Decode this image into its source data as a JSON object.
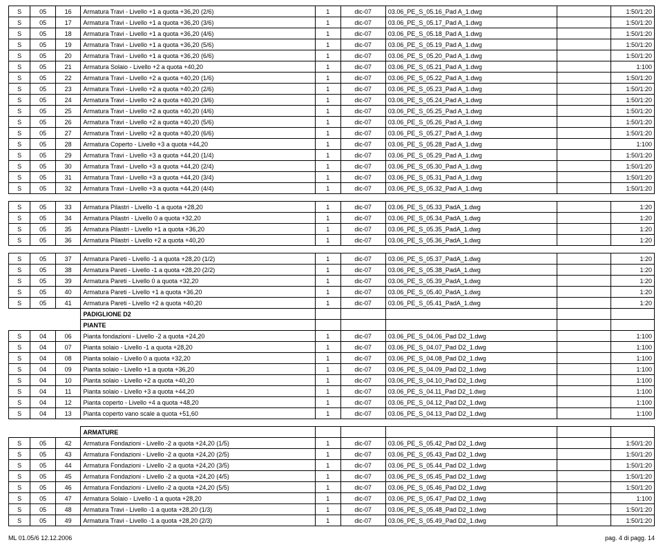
{
  "footer_left": "ML 01.05/6 12.12.2006",
  "footer_right": "pag. 4 di pagg. 14",
  "headers": {
    "pad_d2": "PADIGLIONE D2",
    "piante": "PIANTE",
    "armature": "ARMATURE"
  },
  "rows": [
    {
      "a": "S",
      "b": "05",
      "c": "16",
      "d": "Armatura Travi - Livello +1 a quota +36,20 (2/6)",
      "e": "1",
      "f": "dic-07",
      "g": "03.06_PE_S_05.16_Pad A_1.dwg",
      "i": "1:50/1:20"
    },
    {
      "a": "S",
      "b": "05",
      "c": "17",
      "d": "Armatura Travi - Livello +1 a quota +36,20 (3/6)",
      "e": "1",
      "f": "dic-07",
      "g": "03.06_PE_S_05.17_Pad A_1.dwg",
      "i": "1:50/1:20"
    },
    {
      "a": "S",
      "b": "05",
      "c": "18",
      "d": "Armatura Travi - Livello +1 a quota +36,20 (4/6)",
      "e": "1",
      "f": "dic-07",
      "g": "03.06_PE_S_05.18_Pad A_1.dwg",
      "i": "1:50/1:20"
    },
    {
      "a": "S",
      "b": "05",
      "c": "19",
      "d": "Armatura Travi - Livello +1 a quota +36,20 (5/6)",
      "e": "1",
      "f": "dic-07",
      "g": "03.06_PE_S_05.19_Pad A_1.dwg",
      "i": "1:50/1:20"
    },
    {
      "a": "S",
      "b": "05",
      "c": "20",
      "d": "Armatura Travi - Livello +1 a quota +36,20 (6/6)",
      "e": "1",
      "f": "dic-07",
      "g": "03.06_PE_S_05.20_Pad A_1.dwg",
      "i": "1:50/1:20"
    },
    {
      "a": "S",
      "b": "05",
      "c": "21",
      "d": "Armatura Solaio - Livello +2 a quota +40,20",
      "e": "1",
      "f": "dic-07",
      "g": "03.06_PE_S_05.21_Pad A_1.dwg",
      "i": "1:100"
    },
    {
      "a": "S",
      "b": "05",
      "c": "22",
      "d": "Armatura Travi - Livello +2 a quota +40,20 (1/6)",
      "e": "1",
      "f": "dic-07",
      "g": "03.06_PE_S_05.22_Pad A_1.dwg",
      "i": "1:50/1:20"
    },
    {
      "a": "S",
      "b": "05",
      "c": "23",
      "d": "Armatura Travi - Livello +2 a quota +40,20 (2/6)",
      "e": "1",
      "f": "dic-07",
      "g": "03.06_PE_S_05.23_Pad A_1.dwg",
      "i": "1:50/1:20"
    },
    {
      "a": "S",
      "b": "05",
      "c": "24",
      "d": "Armatura Travi - Livello +2 a quota +40,20 (3/6)",
      "e": "1",
      "f": "dic-07",
      "g": "03.06_PE_S_05.24_Pad A_1.dwg",
      "i": "1:50/1:20"
    },
    {
      "a": "S",
      "b": "05",
      "c": "25",
      "d": "Armatura Travi - Livello +2 a quota +40,20 (4/6)",
      "e": "1",
      "f": "dic-07",
      "g": "03.06_PE_S_05.25_Pad A_1.dwg",
      "i": "1:50/1:20"
    },
    {
      "a": "S",
      "b": "05",
      "c": "26",
      "d": "Armatura Travi - Livello +2 a quota +40,20 (5/6)",
      "e": "1",
      "f": "dic-07",
      "g": "03.06_PE_S_05.26_Pad A_1.dwg",
      "i": "1:50/1:20"
    },
    {
      "a": "S",
      "b": "05",
      "c": "27",
      "d": "Armatura Travi - Livello +2 a quota +40,20 (6/6)",
      "e": "1",
      "f": "dic-07",
      "g": "03.06_PE_S_05.27_Pad A_1.dwg",
      "i": "1:50/1:20"
    },
    {
      "a": "S",
      "b": "05",
      "c": "28",
      "d": "Armatura Coperto - Livello +3 a quota +44,20",
      "e": "1",
      "f": "dic-07",
      "g": "03.06_PE_S_05.28_Pad A_1.dwg",
      "i": "1:100"
    },
    {
      "a": "S",
      "b": "05",
      "c": "29",
      "d": "Armatura Travi - Livello +3 a quota +44,20 (1/4)",
      "e": "1",
      "f": "dic-07",
      "g": "03.06_PE_S_05.29_Pad A_1.dwg",
      "i": "1:50/1:20"
    },
    {
      "a": "S",
      "b": "05",
      "c": "30",
      "d": "Armatura Travi - Livello +3 a quota +44,20 (2/4)",
      "e": "1",
      "f": "dic-07",
      "g": "03.06_PE_S_05.30_Pad A_1.dwg",
      "i": "1:50/1:20"
    },
    {
      "a": "S",
      "b": "05",
      "c": "31",
      "d": "Armatura Travi - Livello +3 a quota +44,20 (3/4)",
      "e": "1",
      "f": "dic-07",
      "g": "03.06_PE_S_05.31_Pad A_1.dwg",
      "i": "1:50/1:20"
    },
    {
      "a": "S",
      "b": "05",
      "c": "32",
      "d": "Armatura Travi - Livello +3 a quota +44,20 (4/4)",
      "e": "1",
      "f": "dic-07",
      "g": "03.06_PE_S_05.32_Pad A_1.dwg",
      "i": "1:50/1:20"
    },
    {
      "spacer": true
    },
    {
      "a": "S",
      "b": "05",
      "c": "33",
      "d": "Armatura Pilastri - Livello -1 a quota +28,20",
      "e": "1",
      "f": "dic-07",
      "g": "03.06_PE_S_05.33_PadA_1.dwg",
      "i": "1:20"
    },
    {
      "a": "S",
      "b": "05",
      "c": "34",
      "d": "Armatura Pilastri - Livello 0 a quota +32,20",
      "e": "1",
      "f": "dic-07",
      "g": "03.06_PE_S_05.34_PadA_1.dwg",
      "i": "1:20"
    },
    {
      "a": "S",
      "b": "05",
      "c": "35",
      "d": "Armatura Pilastri - Livello +1 a quota +36,20",
      "e": "1",
      "f": "dic-07",
      "g": "03.06_PE_S_05.35_PadA_1.dwg",
      "i": "1:20"
    },
    {
      "a": "S",
      "b": "05",
      "c": "36",
      "d": "Armatura Pilastri - Livello +2 a quota +40,20",
      "e": "1",
      "f": "dic-07",
      "g": "03.06_PE_S_05.36_PadA_1.dwg",
      "i": "1:20"
    },
    {
      "spacer": true
    },
    {
      "a": "S",
      "b": "05",
      "c": "37",
      "d": "Armatura Pareti - Livello -1 a quota +28,20 (1/2)",
      "e": "1",
      "f": "dic-07",
      "g": "03.06_PE_S_05.37_PadA_1.dwg",
      "i": "1:20"
    },
    {
      "a": "S",
      "b": "05",
      "c": "38",
      "d": "Armatura Pareti - Livello -1 a quota +28,20 (2/2)",
      "e": "1",
      "f": "dic-07",
      "g": "03.06_PE_S_05.38_PadA_1.dwg",
      "i": "1:20"
    },
    {
      "a": "S",
      "b": "05",
      "c": "39",
      "d": "Armatura Pareti - Livello 0 a quota +32,20",
      "e": "1",
      "f": "dic-07",
      "g": "03.06_PE_S_05.39_PadA_1.dwg",
      "i": "1:20"
    },
    {
      "a": "S",
      "b": "05",
      "c": "40",
      "d": "Armatura Pareti - Livello +1 a quota +36,20",
      "e": "1",
      "f": "dic-07",
      "g": "03.06_PE_S_05.40_PadA_1.dwg",
      "i": "1:20"
    },
    {
      "a": "S",
      "b": "05",
      "c": "41",
      "d": "Armatura Pareti - Livello +2 a quota +40,20",
      "e": "1",
      "f": "dic-07",
      "g": "03.06_PE_S_05.41_PadA_1.dwg",
      "i": "1:20"
    },
    {
      "headerRow": "pad_d2"
    },
    {
      "headerRow": "piante"
    },
    {
      "a": "S",
      "b": "04",
      "c": "06",
      "d": "Pianta fondazioni - Livello -2 a quota +24,20",
      "e": "1",
      "f": "dic-07",
      "g": "03.06_PE_S_04.06_Pad D2_1.dwg",
      "i": "1:100"
    },
    {
      "a": "S",
      "b": "04",
      "c": "07",
      "d": "Pianta solaio - Livello -1 a quota +28,20",
      "e": "1",
      "f": "dic-07",
      "g": "03.06_PE_S_04.07_Pad D2_1.dwg",
      "i": "1:100"
    },
    {
      "a": "S",
      "b": "04",
      "c": "08",
      "d": "Pianta solaio - Livello 0 a quota +32,20",
      "e": "1",
      "f": "dic-07",
      "g": "03.06_PE_S_04.08_Pad D2_1.dwg",
      "i": "1:100"
    },
    {
      "a": "S",
      "b": "04",
      "c": "09",
      "d": "Pianta solaio - Livello +1 a quota +36,20",
      "e": "1",
      "f": "dic-07",
      "g": "03.06_PE_S_04.09_Pad D2_1.dwg",
      "i": "1:100"
    },
    {
      "a": "S",
      "b": "04",
      "c": "10",
      "d": "Pianta solaio - Livello +2 a quota +40,20",
      "e": "1",
      "f": "dic-07",
      "g": "03.06_PE_S_04.10_Pad D2_1.dwg",
      "i": "1:100"
    },
    {
      "a": "S",
      "b": "04",
      "c": "11",
      "d": "Pianta solaio - Livello +3 a quota +44,20",
      "e": "1",
      "f": "dic-07",
      "g": "03.06_PE_S_04.11_Pad D2_1.dwg",
      "i": "1:100"
    },
    {
      "a": "S",
      "b": "04",
      "c": "12",
      "d": "Pianta coperto - Livello +4 a quota +48,20",
      "e": "1",
      "f": "dic-07",
      "g": "03.06_PE_S_04.12_Pad D2_1.dwg",
      "i": "1:100"
    },
    {
      "a": "S",
      "b": "04",
      "c": "13",
      "d": "Pianta coperto vano scale a quota +51,60",
      "e": "1",
      "f": "dic-07",
      "g": "03.06_PE_S_04.13_Pad D2_1.dwg",
      "i": "1:100"
    },
    {
      "spacer": true
    },
    {
      "headerRow": "armature"
    },
    {
      "a": "S",
      "b": "05",
      "c": "42",
      "d": "Armatura Fondazioni - Livello -2 a quota +24,20 (1/5)",
      "e": "1",
      "f": "dic-07",
      "g": "03.06_PE_S_05.42_Pad D2_1.dwg",
      "i": "1:50/1:20"
    },
    {
      "a": "S",
      "b": "05",
      "c": "43",
      "d": "Armatura Fondazioni - Livello -2 a quota +24,20 (2/5)",
      "e": "1",
      "f": "dic-07",
      "g": "03.06_PE_S_05.43_Pad D2_1.dwg",
      "i": "1:50/1:20"
    },
    {
      "a": "S",
      "b": "05",
      "c": "44",
      "d": "Armatura Fondazioni - Livello -2 a quota +24,20 (3/5)",
      "e": "1",
      "f": "dic-07",
      "g": "03.06_PE_S_05.44_Pad D2_1.dwg",
      "i": "1:50/1:20"
    },
    {
      "a": "S",
      "b": "05",
      "c": "45",
      "d": "Armatura Fondazioni - Livello -2 a quota +24,20 (4/5)",
      "e": "1",
      "f": "dic-07",
      "g": "03.06_PE_S_05.45_Pad D2_1.dwg",
      "i": "1:50/1:20"
    },
    {
      "a": "S",
      "b": "05",
      "c": "46",
      "d": "Armatura Fondazioni - Livello -2 a quota +24,20 (5/5)",
      "e": "1",
      "f": "dic-07",
      "g": "03.06_PE_S_05.46_Pad D2_1.dwg",
      "i": "1:50/1:20"
    },
    {
      "a": "S",
      "b": "05",
      "c": "47",
      "d": "Armatura Solaio - Livello -1 a quota +28,20",
      "e": "1",
      "f": "dic-07",
      "g": "03.06_PE_S_05.47_Pad D2_1.dwg",
      "i": "1:100"
    },
    {
      "a": "S",
      "b": "05",
      "c": "48",
      "d": "Armatura Travi - Livello -1 a quota +28,20 (1/3)",
      "e": "1",
      "f": "dic-07",
      "g": "03.06_PE_S_05.48_Pad D2_1.dwg",
      "i": "1:50/1:20"
    },
    {
      "a": "S",
      "b": "05",
      "c": "49",
      "d": "Armatura Travi - Livello -1 a quota +28,20 (2/3)",
      "e": "1",
      "f": "dic-07",
      "g": "03.06_PE_S_05.49_Pad D2_1.dwg",
      "i": "1:50/1:20"
    }
  ]
}
